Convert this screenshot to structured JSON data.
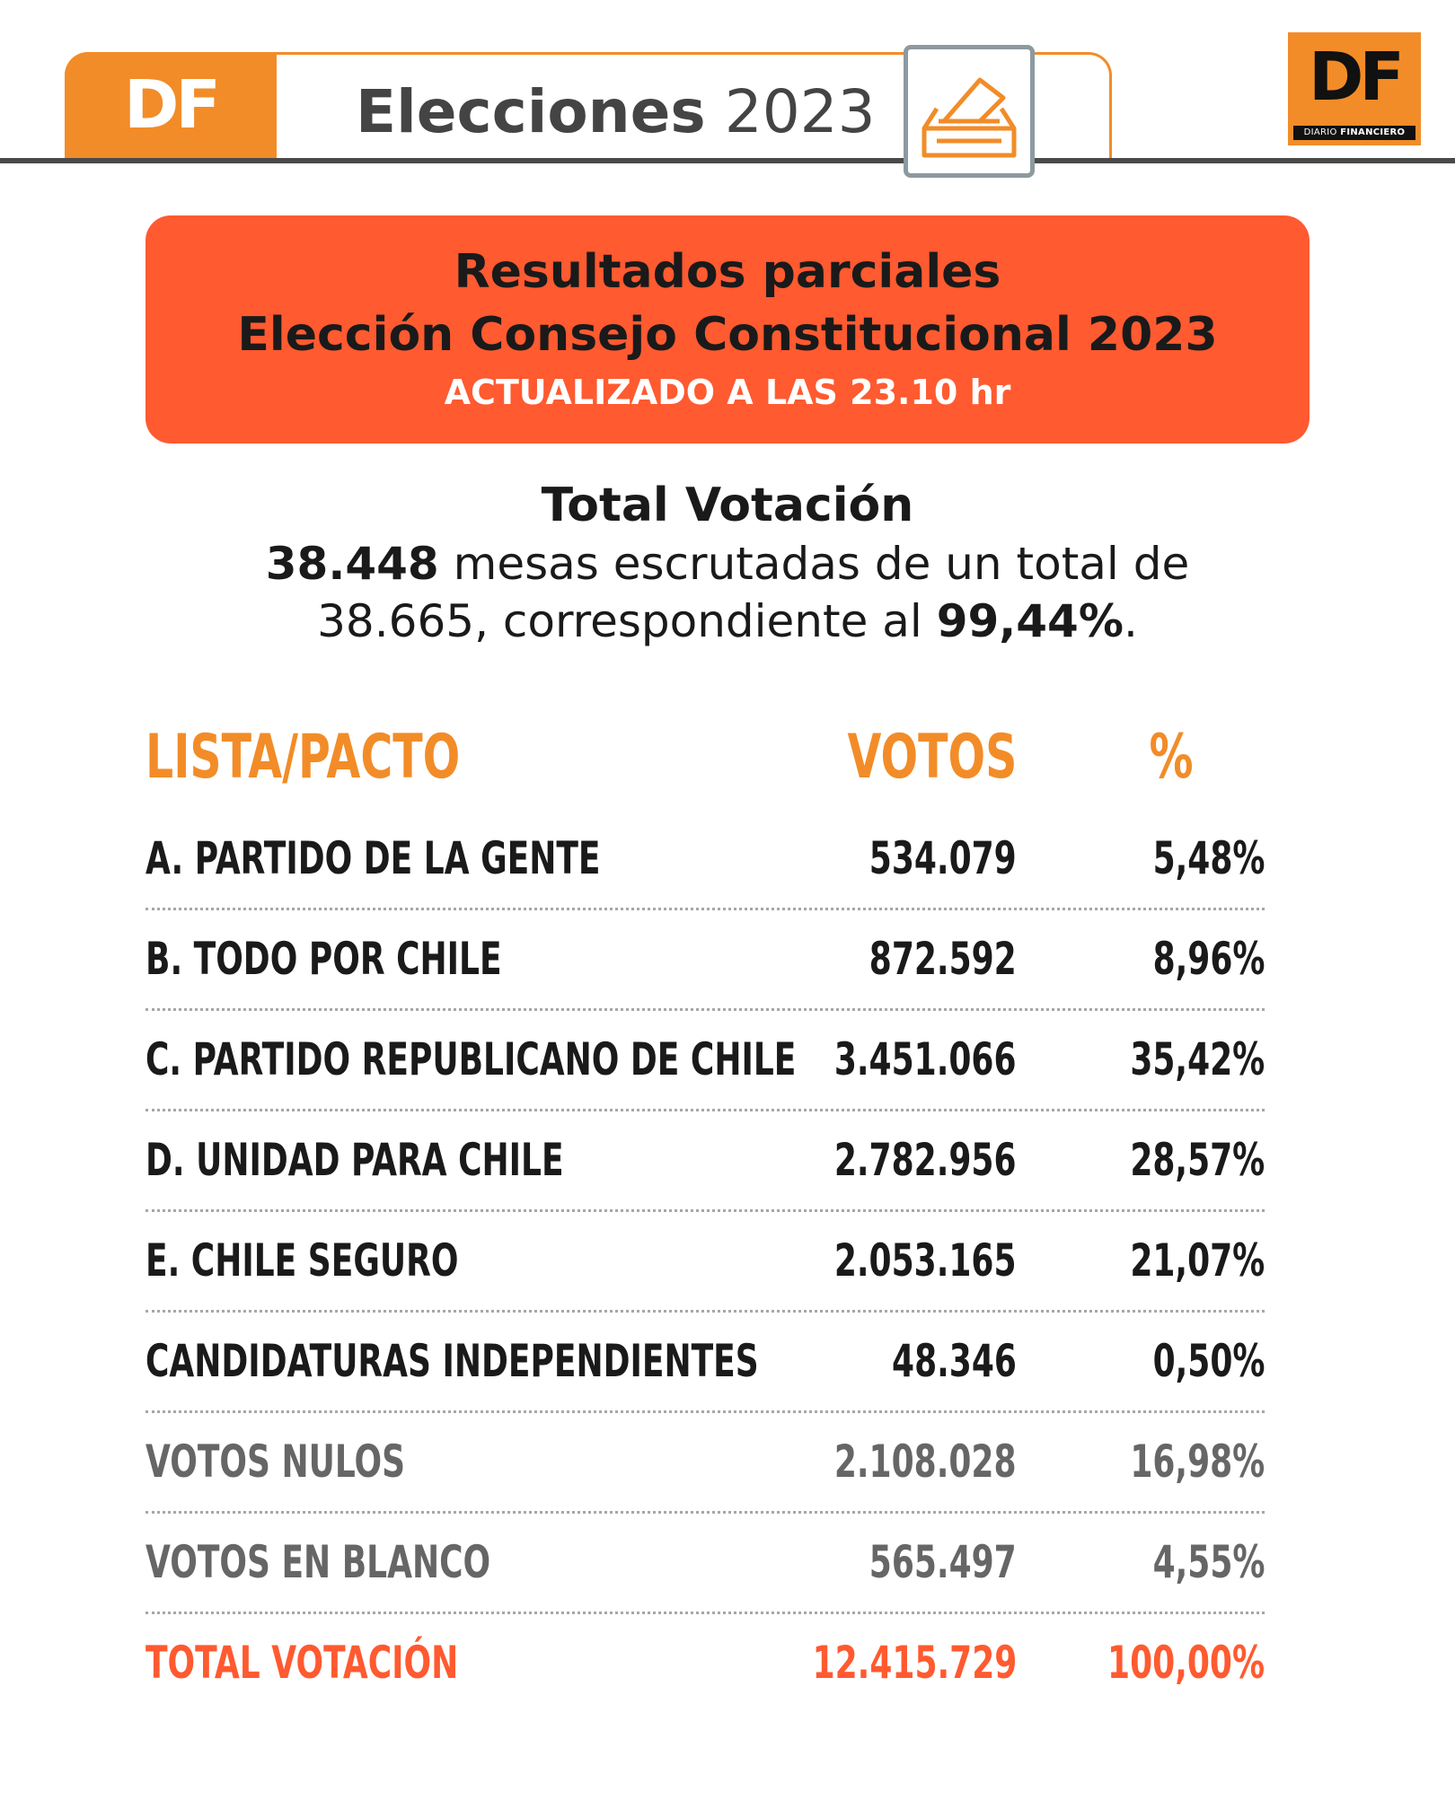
{
  "header": {
    "logo_text": "DF",
    "title_bold": "Elecciones",
    "title_year": "2023",
    "ballot_icon": "ballot-box-icon",
    "brand_logo": {
      "letters": "DF",
      "strip_part1": "DIARIO",
      "strip_part2": "FINANCIERO"
    },
    "accent": "#f28c28"
  },
  "banner": {
    "line1": "Resultados parciales",
    "line2": "Elección Consejo Constitucional 2023",
    "line3": "ACTUALIZADO A LAS 23.10 hr",
    "color": "#ff5a30"
  },
  "summary": {
    "title": "Total Votación",
    "mesas_escrutadas": "38.448",
    "text_a": " mesas escrutadas de un total de",
    "total_mesas": "38.665",
    "text_b": ", correspondiente al ",
    "porcentaje": "99,44%",
    "text_c": "."
  },
  "table": {
    "headers": {
      "name": "LISTA/PACTO",
      "votes": "VOTOS",
      "pct": "%"
    },
    "rows": [
      {
        "name": "A. PARTIDO DE LA GENTE",
        "votes": "534.079",
        "pct": "5,48%"
      },
      {
        "name": "B. TODO POR CHILE",
        "votes": "872.592",
        "pct": "8,96%"
      },
      {
        "name": "C. PARTIDO REPUBLICANO DE CHILE",
        "votes": "3.451.066",
        "pct": "35,42%"
      },
      {
        "name": "D. UNIDAD PARA CHILE",
        "votes": "2.782.956",
        "pct": "28,57%"
      },
      {
        "name": "E. CHILE SEGURO",
        "votes": "2.053.165",
        "pct": "21,07%"
      },
      {
        "name": "CANDIDATURAS INDEPENDIENTES",
        "votes": "48.346",
        "pct": "0,50%"
      },
      {
        "name": "VOTOS NULOS",
        "votes": "2.108.028",
        "pct": "16,98%"
      },
      {
        "name": "VOTOS EN BLANCO",
        "votes": "565.497",
        "pct": "4,55%"
      },
      {
        "name": "TOTAL VOTACIÓN",
        "votes": "12.415.729",
        "pct": "100,00%"
      }
    ]
  }
}
